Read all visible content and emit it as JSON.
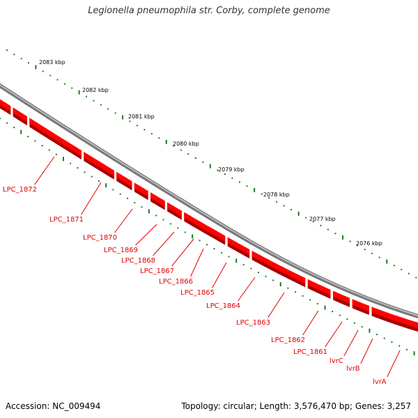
{
  "title": "Legionella pneumophila str. Corby, complete genome",
  "footer": {
    "accession": "Accession: NC_009494",
    "topology": "Topology: circular; Length: 3,576,470 bp; Genes: 3,257"
  },
  "colors": {
    "backbone": "#7a7a7a",
    "gene": "#ff0000",
    "gene_shadow": "#a80000",
    "tick": "#1f7a1f",
    "label": "#e00000",
    "kbp_label": "#000000"
  },
  "kbp_ticks": [
    "2083 kbp",
    "2082 kbp",
    "2081 kbp",
    "2080 kbp",
    "2079 kbp",
    "2078 kbp",
    "2077 kbp",
    "2076 kbp"
  ],
  "genes": [
    "LPC_1872",
    "LPC_1871",
    "LPC_1870",
    "LPC_1869",
    "LPC_1868",
    "LPC_1867",
    "LPC_1866",
    "LPC_1865",
    "LPC_1864",
    "LPC_1863",
    "LPC_1862",
    "LPC_1861",
    "lvrC",
    "lvrB",
    "lvrA"
  ]
}
